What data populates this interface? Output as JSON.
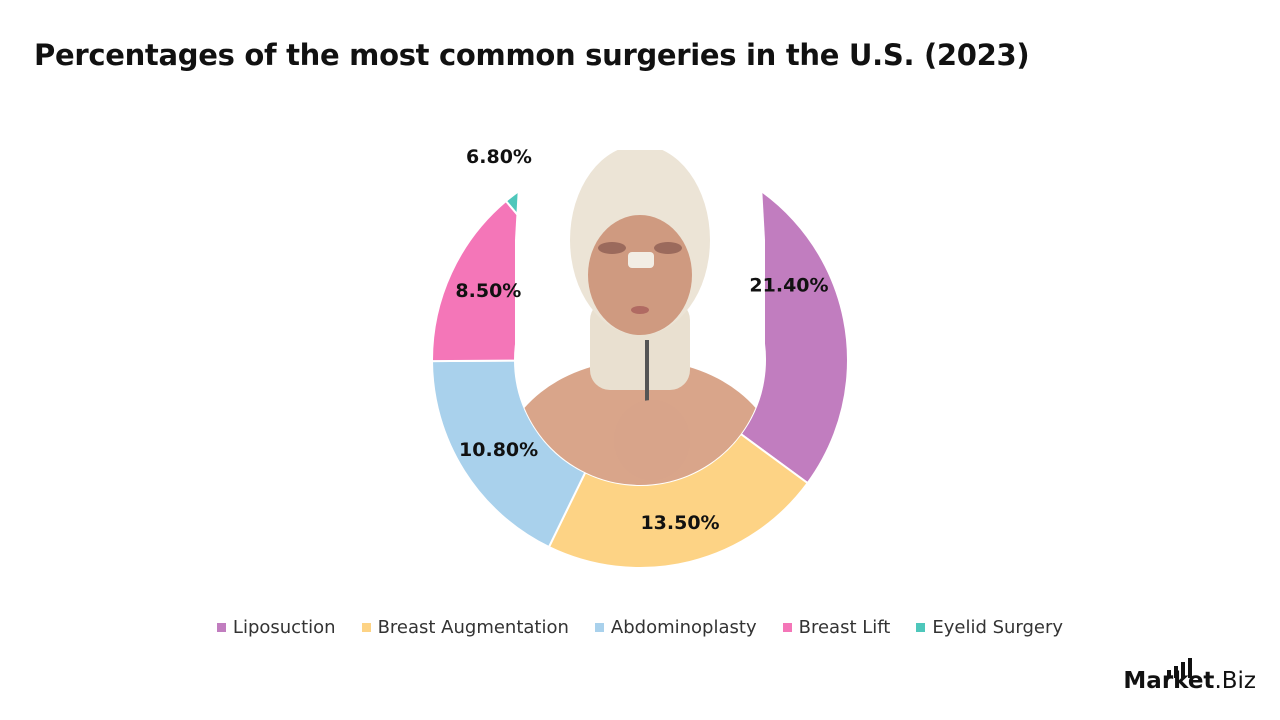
{
  "title": "Percentages of the most common surgeries in the U.S. (2023)",
  "chart_data": {
    "type": "pie",
    "variant": "donut",
    "title": "Percentages of the most common surgeries in the U.S. (2023)",
    "categories": [
      "Liposuction",
      "Breast Augmentation",
      "Abdominoplasty",
      "Breast Lift",
      "Eyelid Surgery"
    ],
    "values": [
      21.4,
      13.5,
      10.8,
      8.5,
      6.8
    ],
    "labels": [
      "21.40%",
      "13.50%",
      "10.80%",
      "8.50%",
      "6.80%"
    ],
    "colors": [
      "#C17DBF",
      "#FDD385",
      "#A9D1EC",
      "#F476B8",
      "#4EC7BB"
    ],
    "legend_position": "bottom"
  },
  "logo": {
    "bold": "Market",
    "light": ".Biz"
  }
}
